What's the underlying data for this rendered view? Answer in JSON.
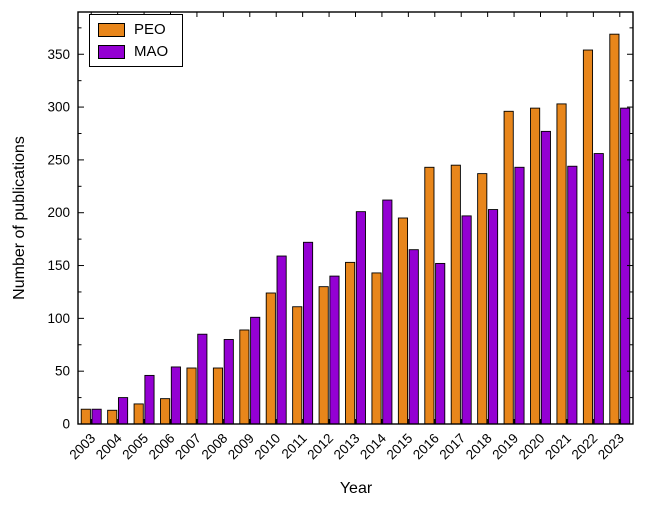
{
  "figure": {
    "background": "#ffffff"
  },
  "chart_data": {
    "type": "bar",
    "title": "",
    "xlabel": "Year",
    "ylabel": "Number of publications",
    "categories": [
      "2003",
      "2004",
      "2005",
      "2006",
      "2007",
      "2008",
      "2009",
      "2010",
      "2011",
      "2012",
      "2013",
      "2014",
      "2015",
      "2016",
      "2017",
      "2018",
      "2019",
      "2020",
      "2021",
      "2022",
      "2023"
    ],
    "series": [
      {
        "name": "PEO",
        "color": "#E8861B",
        "values": [
          14,
          13,
          19,
          24,
          53,
          53,
          89,
          124,
          111,
          130,
          153,
          143,
          195,
          243,
          245,
          237,
          296,
          299,
          303,
          354,
          369
        ]
      },
      {
        "name": "MAO",
        "color": "#9400D3",
        "values": [
          14,
          25,
          46,
          54,
          85,
          80,
          101,
          159,
          172,
          140,
          201,
          212,
          165,
          152,
          197,
          203,
          243,
          277,
          244,
          256,
          299
        ]
      }
    ],
    "ylim": [
      0,
      390
    ],
    "yticks": [
      0,
      50,
      100,
      150,
      200,
      250,
      300,
      350
    ],
    "y_minor_step": 25,
    "grid": false,
    "legend_position": "top-left",
    "axis_color": "#000000",
    "bar_edge_color": "#000000"
  }
}
